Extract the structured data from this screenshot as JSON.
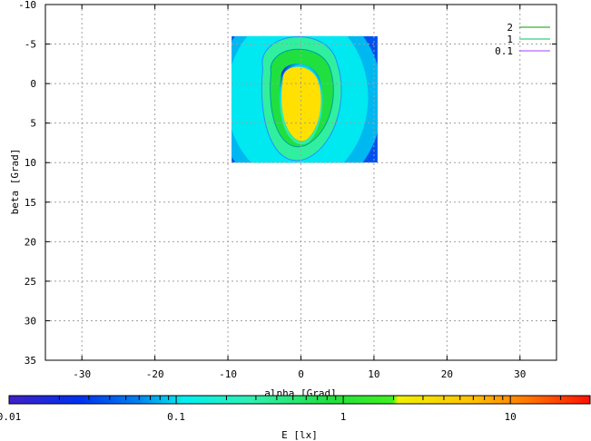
{
  "chart_data": {
    "type": "heatmap",
    "title": "",
    "xlabel": "alpha [Grad]",
    "ylabel": "beta [Grad]",
    "xlim": [
      -35,
      35
    ],
    "ylim": [
      -10,
      35
    ],
    "y_inverted": true,
    "x_ticks": [
      -30,
      -20,
      -10,
      0,
      10,
      20,
      30
    ],
    "y_ticks": [
      -10,
      -5,
      0,
      5,
      10,
      15,
      20,
      25,
      30,
      35
    ],
    "grid": true,
    "legend_position": "top-right",
    "data_extent": {
      "alpha": [
        -9.5,
        10.5
      ],
      "beta": [
        -6,
        10
      ]
    },
    "peak": {
      "alpha": 0,
      "beta": 1.5,
      "value": 3.0
    },
    "series": [
      {
        "name": "2",
        "level": 2,
        "color": "#00a000"
      },
      {
        "name": "1",
        "level": 1,
        "color": "#00c060"
      },
      {
        "name": "0.1",
        "level": 0.1,
        "color": "#a040ff"
      }
    ],
    "colorbar": {
      "label": "E [lx]",
      "scale": "log",
      "range": [
        0.01,
        30
      ],
      "tick_labels": [
        "0.01",
        "0.1",
        "1",
        "10"
      ],
      "tick_values": [
        0.01,
        0.1,
        1,
        10
      ],
      "bands": [
        {
          "from": 0.01,
          "to": 0.03,
          "color": "#3b1fd0"
        },
        {
          "from": 0.03,
          "to": 0.1,
          "color": "#0a4af0"
        },
        {
          "from": 0.1,
          "to": 0.3,
          "color": "#00e8f0"
        },
        {
          "from": 0.3,
          "to": 0.8,
          "color": "#30f0a0"
        },
        {
          "from": 0.8,
          "to": 2.0,
          "color": "#20e030"
        },
        {
          "from": 2.0,
          "to": 8.0,
          "color": "#f0f000"
        },
        {
          "from": 8.0,
          "to": 30,
          "color": "#ff2000"
        }
      ]
    }
  }
}
